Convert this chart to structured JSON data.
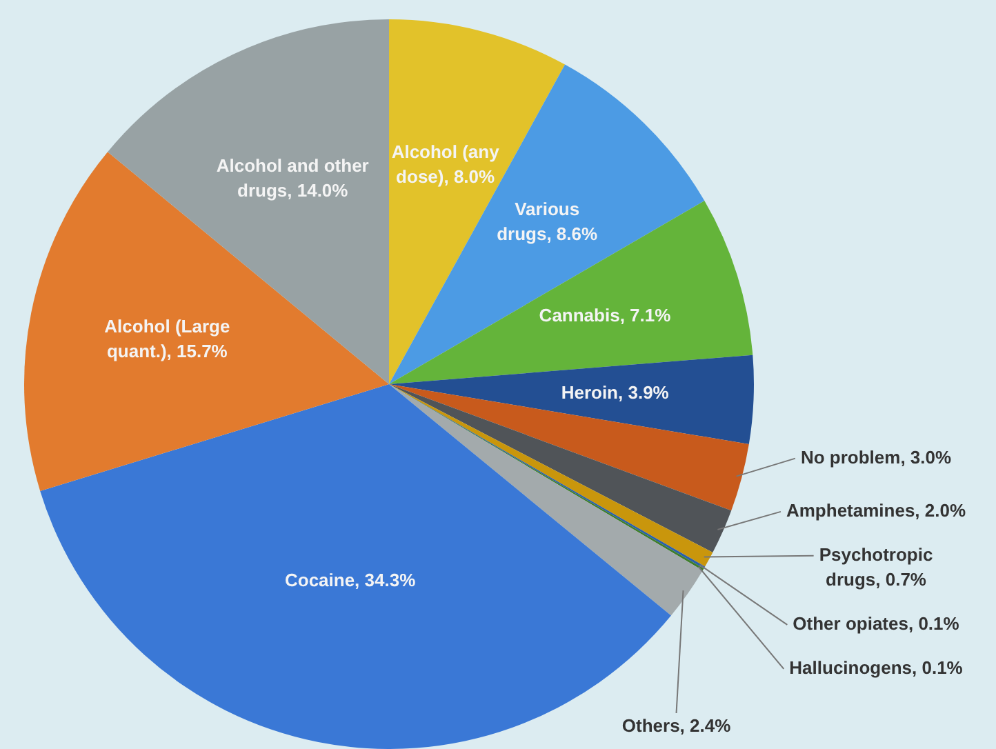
{
  "chart_data": {
    "type": "pie",
    "categories": [
      "Alcohol (any dose)",
      "Various drugs",
      "Cannabis",
      "Heroin",
      "No problem",
      "Amphetamines",
      "Psychotropic drugs",
      "Other opiates",
      "Hallucinogens",
      "Others",
      "Cocaine",
      "Alcohol (Large quant.)",
      "Alcohol and other drugs"
    ],
    "values": [
      8.0,
      8.6,
      7.1,
      3.9,
      3.0,
      2.0,
      0.7,
      0.1,
      0.1,
      2.4,
      34.3,
      15.7,
      14.0
    ],
    "value_labels": [
      "8.0%",
      "8.6%",
      "7.1%",
      "3.9%",
      "3.0%",
      "2.0%",
      "0.7%",
      "0.1%",
      "0.1%",
      "2.4%",
      "34.3%",
      "15.7%",
      "14.0%"
    ],
    "colors": [
      "#e2c22a",
      "#4c9be4",
      "#64b43a",
      "#234f93",
      "#c85a1c",
      "#505458",
      "#c9960c",
      "#2a5faa",
      "#3f7d2a",
      "#a3aaac",
      "#3a78d6",
      "#e27b2e",
      "#98a2a4"
    ],
    "legend": false
  }
}
